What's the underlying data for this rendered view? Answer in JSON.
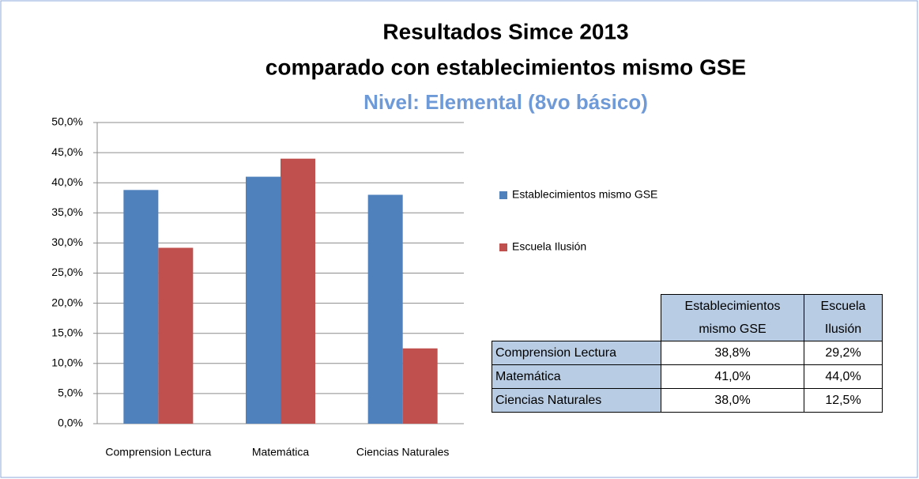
{
  "chart_data": {
    "type": "bar",
    "title": "Resultados Simce 2013",
    "title_line2": "comparado con establecimientos mismo GSE",
    "subtitle": "Nivel: Elemental (8vo básico)",
    "categories": [
      "Comprension Lectura",
      "Matemática",
      "Ciencias Naturales"
    ],
    "series": [
      {
        "name": "Establecimientos mismo GSE",
        "color": "#4f81bd",
        "values": [
          38.8,
          41.0,
          38.0
        ],
        "value_labels": [
          "38,8%",
          "41,0%",
          "38,0%"
        ]
      },
      {
        "name": "Escuela Ilusión",
        "color": "#c0504d",
        "values": [
          29.2,
          44.0,
          12.5
        ],
        "value_labels": [
          "29,2%",
          "44,0%",
          "12,5%"
        ]
      }
    ],
    "ylim": [
      0,
      50
    ],
    "yticks": [
      {
        "value": 0,
        "label": "0,0%"
      },
      {
        "value": 5,
        "label": "5,0%"
      },
      {
        "value": 10,
        "label": "10,0%"
      },
      {
        "value": 15,
        "label": "15,0%"
      },
      {
        "value": 20,
        "label": "20,0%"
      },
      {
        "value": 25,
        "label": "25,0%"
      },
      {
        "value": 30,
        "label": "30,0%"
      },
      {
        "value": 35,
        "label": "35,0%"
      },
      {
        "value": 40,
        "label": "40,0%"
      },
      {
        "value": 45,
        "label": "45,0%"
      },
      {
        "value": 50,
        "label": "50,0%"
      }
    ],
    "grid": true,
    "legend": "right"
  }
}
